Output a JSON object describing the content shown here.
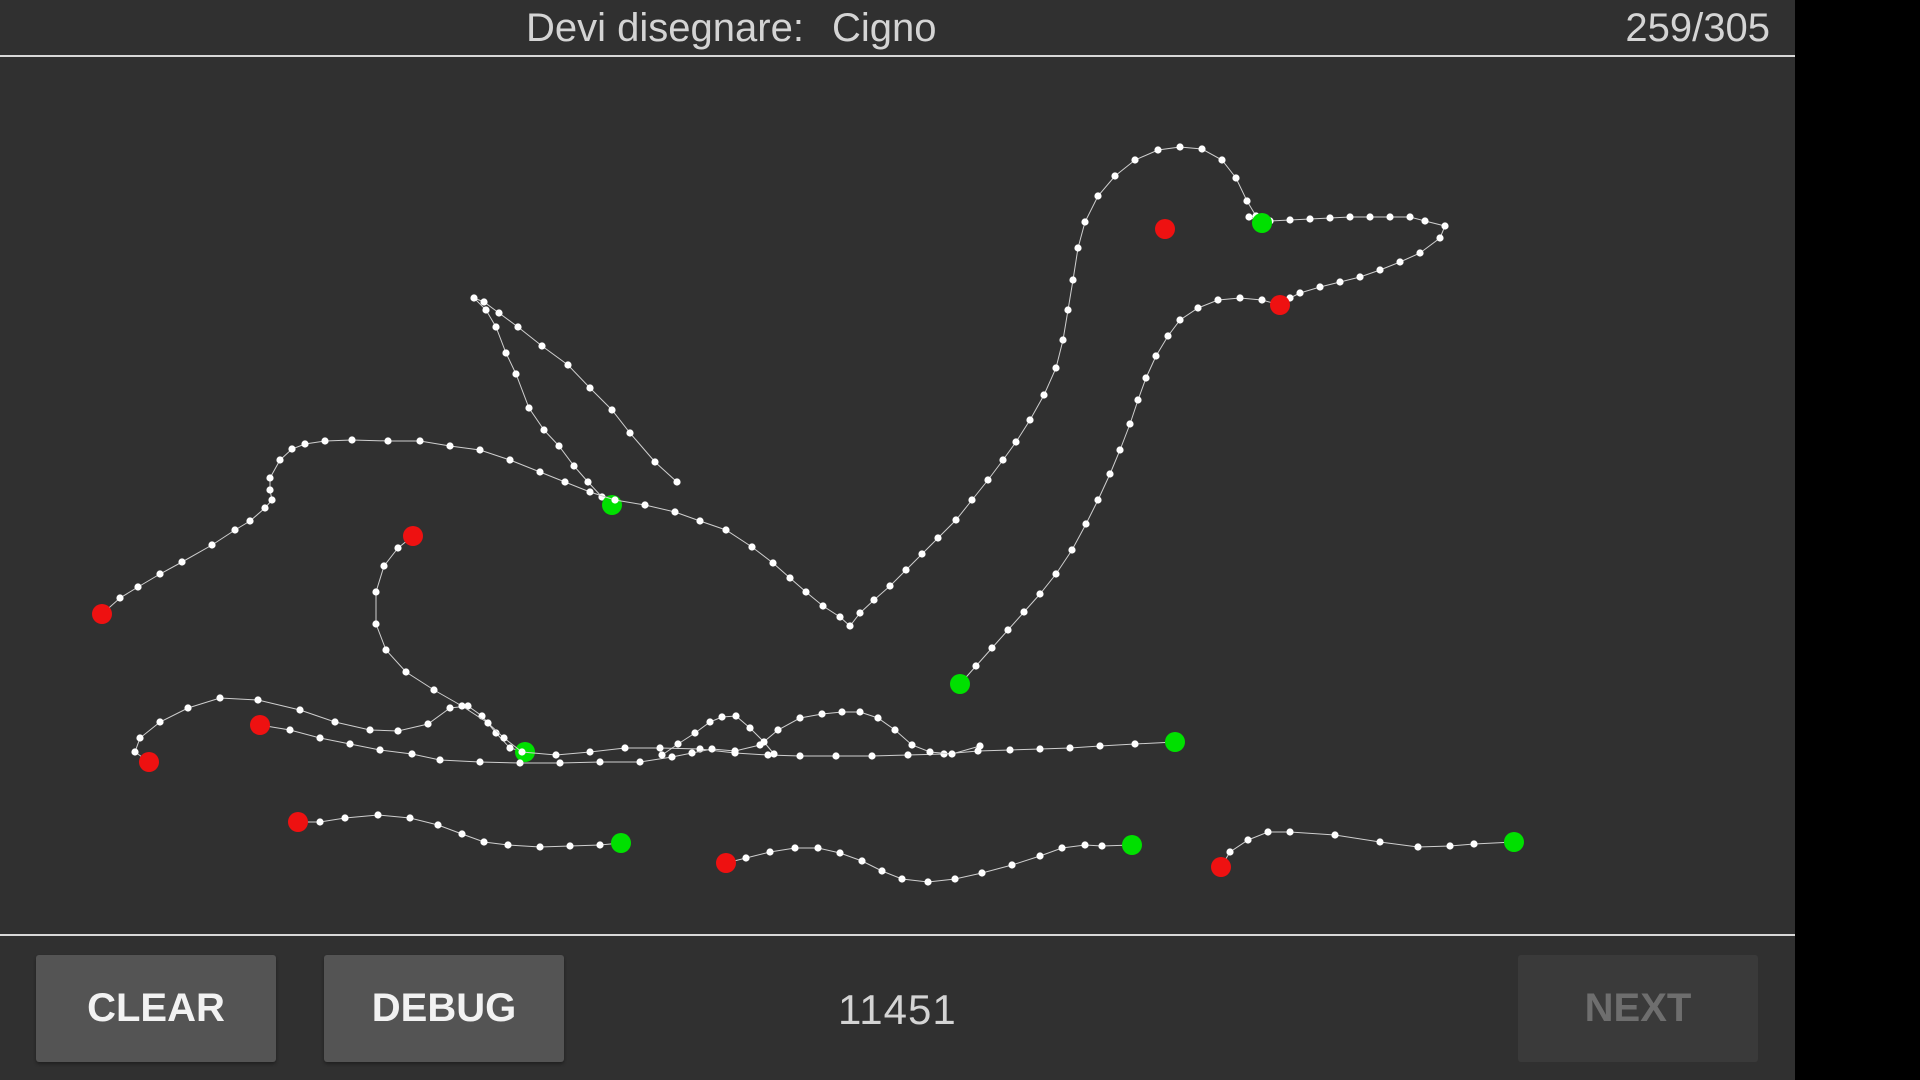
{
  "header": {
    "prompt_label": "Devi disegnare:",
    "target_word": "Cigno",
    "progress": "259/305"
  },
  "footer": {
    "clear_label": "CLEAR",
    "debug_label": "DEBUG",
    "score": "11451",
    "next_label": "NEXT",
    "next_enabled": false
  },
  "colors": {
    "background": "#303030",
    "stroke_points": "#ffffff",
    "stroke_start": "#00e000",
    "stroke_end": "#ee1111"
  }
}
